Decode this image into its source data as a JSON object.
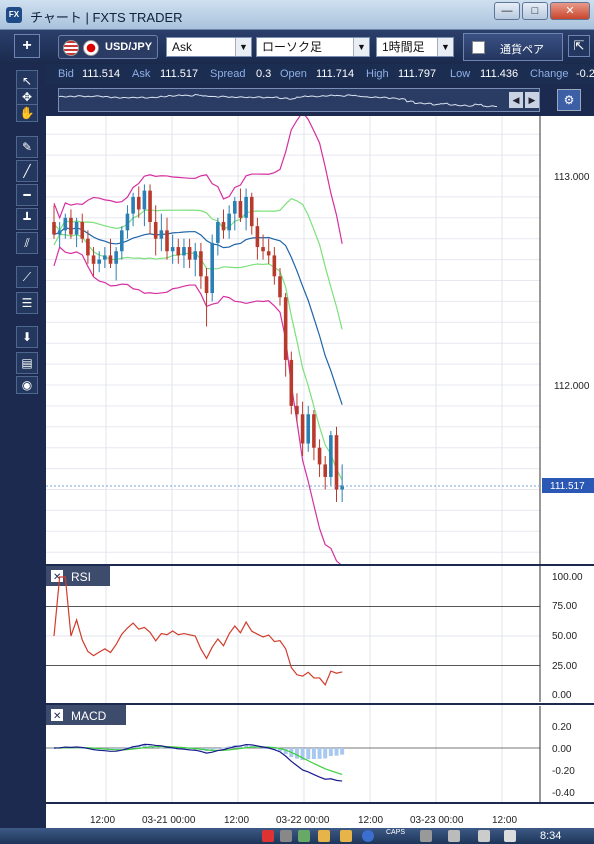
{
  "window": {
    "title": "チャート | FXTS TRADER",
    "icon_text": "FX",
    "min": "—",
    "max": "□",
    "close": "✕"
  },
  "toolbar": {
    "add": "+",
    "pair": "USD/JPY",
    "price_type": "Ask",
    "chart_type": "ローソク足",
    "timeframe": "1時間足",
    "currency_strength": "通貨ペア",
    "collapse": "⇱"
  },
  "quote": {
    "bid_label": "Bid",
    "bid": "111.514",
    "ask_label": "Ask",
    "ask": "111.517",
    "spread_label": "Spread",
    "spread": "0.3",
    "open_label": "Open",
    "open": "111.714",
    "high_label": "High",
    "high": "111.797",
    "low_label": "Low",
    "low": "111.436",
    "change_label": "Change",
    "change": "-0.2"
  },
  "tools": [
    "cursor-icon",
    "crosshair-icon",
    "hand-icon",
    "pencil-icon",
    "trendline-icon",
    "horizontal-line-icon",
    "vertical-line-icon",
    "channel-icon",
    "fibonacci-fan-icon",
    "fibonacci-retracement-icon",
    "download-icon",
    "list-icon",
    "camera-icon"
  ],
  "panels": {
    "rsi_title": "RSI",
    "macd_title": "MACD",
    "close_glyph": "✕"
  },
  "price_axis": [
    "113.000",
    "112.000"
  ],
  "current_price": "111.517",
  "rsi_axis": [
    "100.00",
    "75.00",
    "50.00",
    "25.00",
    "0.00"
  ],
  "macd_axis": [
    "0.20",
    "0.00",
    "-0.20",
    "-0.40"
  ],
  "time_axis": [
    "12:00",
    "03-21 00:00",
    "12:00",
    "03-22 00:00",
    "12:00",
    "03-23 00:00",
    "12:00"
  ],
  "taskbar": {
    "caps": "CAPS",
    "time": "8:34"
  },
  "colors": {
    "bull": "#2a7fb4",
    "bear": "#b83a2c",
    "ma": "#1f63a8",
    "bb_inner": "#7ce07a",
    "bb_outer": "#d62fa0",
    "rsi": "#d23b2b",
    "macd_line": "#1a1a8c",
    "signal": "#3bd03b",
    "hist": "#a9c8ef"
  },
  "chart_data": {
    "type": "candlestick",
    "timeframe": "1h",
    "candles": [
      [
        112.78,
        112.86,
        112.7,
        112.72
      ],
      [
        112.72,
        112.78,
        112.66,
        112.74
      ],
      [
        112.74,
        112.82,
        112.7,
        112.8
      ],
      [
        112.8,
        112.84,
        112.7,
        112.72
      ],
      [
        112.72,
        112.8,
        112.66,
        112.78
      ],
      [
        112.78,
        112.82,
        112.68,
        112.7
      ],
      [
        112.7,
        112.74,
        112.58,
        112.62
      ],
      [
        112.62,
        112.66,
        112.52,
        112.58
      ],
      [
        112.58,
        112.64,
        112.54,
        112.6
      ],
      [
        112.6,
        112.66,
        112.56,
        112.62
      ],
      [
        112.62,
        112.7,
        112.56,
        112.58
      ],
      [
        112.58,
        112.66,
        112.5,
        112.64
      ],
      [
        112.64,
        112.76,
        112.6,
        112.74
      ],
      [
        112.74,
        112.86,
        112.7,
        112.82
      ],
      [
        112.82,
        112.92,
        112.76,
        112.9
      ],
      [
        112.9,
        112.95,
        112.8,
        112.84
      ],
      [
        112.84,
        112.96,
        112.76,
        112.93
      ],
      [
        112.93,
        112.96,
        112.72,
        112.78
      ],
      [
        112.78,
        112.86,
        112.62,
        112.7
      ],
      [
        112.7,
        112.82,
        112.64,
        112.74
      ],
      [
        112.74,
        112.8,
        112.6,
        112.64
      ],
      [
        112.64,
        112.72,
        112.58,
        112.66
      ],
      [
        112.66,
        112.7,
        112.58,
        112.62
      ],
      [
        112.62,
        112.7,
        112.56,
        112.66
      ],
      [
        112.66,
        112.7,
        112.56,
        112.6
      ],
      [
        112.6,
        112.68,
        112.52,
        112.64
      ],
      [
        112.64,
        112.68,
        112.46,
        112.52
      ],
      [
        112.52,
        112.56,
        112.28,
        112.44
      ],
      [
        112.44,
        112.72,
        112.4,
        112.68
      ],
      [
        112.68,
        112.8,
        112.62,
        112.78
      ],
      [
        112.78,
        112.84,
        112.7,
        112.74
      ],
      [
        112.74,
        112.86,
        112.7,
        112.82
      ],
      [
        112.82,
        112.9,
        112.74,
        112.88
      ],
      [
        112.88,
        112.94,
        112.78,
        112.8
      ],
      [
        112.8,
        112.94,
        112.74,
        112.9
      ],
      [
        112.9,
        112.92,
        112.72,
        112.76
      ],
      [
        112.76,
        112.8,
        112.6,
        112.66
      ],
      [
        112.66,
        112.72,
        112.6,
        112.64
      ],
      [
        112.64,
        112.7,
        112.58,
        112.62
      ],
      [
        112.62,
        112.66,
        112.48,
        112.52
      ],
      [
        112.52,
        112.56,
        112.38,
        112.42
      ],
      [
        112.42,
        112.44,
        112.04,
        112.12
      ],
      [
        112.12,
        112.16,
        111.86,
        111.9
      ],
      [
        111.9,
        111.96,
        111.82,
        111.86
      ],
      [
        111.86,
        111.92,
        111.66,
        111.72
      ],
      [
        111.72,
        111.9,
        111.68,
        111.86
      ],
      [
        111.86,
        111.88,
        111.64,
        111.7
      ],
      [
        111.7,
        111.74,
        111.56,
        111.62
      ],
      [
        111.62,
        111.66,
        111.5,
        111.56
      ],
      [
        111.56,
        111.78,
        111.52,
        111.76
      ],
      [
        111.76,
        111.8,
        111.44,
        111.5
      ],
      [
        111.5,
        111.62,
        111.44,
        111.52
      ]
    ],
    "price_range": [
      111.2,
      113.25
    ],
    "indicators": [
      "Moving Average",
      "Bollinger Bands",
      "RSI",
      "MACD"
    ]
  }
}
